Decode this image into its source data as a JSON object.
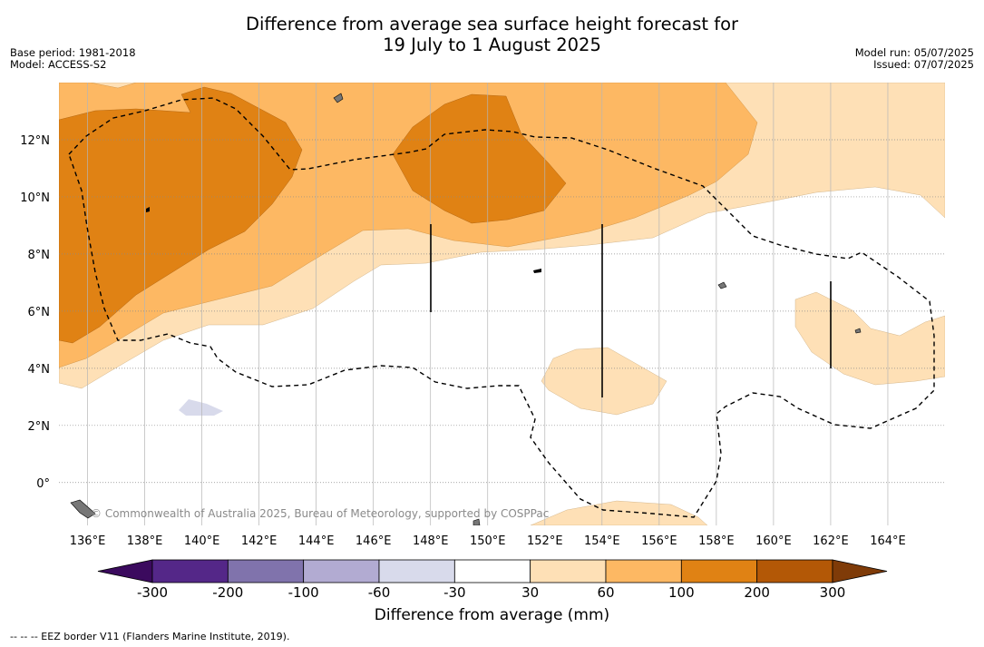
{
  "title": {
    "line1": "Difference from average sea surface height forecast for",
    "line2": "19 July to 1 August 2025"
  },
  "meta_left": {
    "base_period": "Base period: 1981-2018",
    "model": "Model: ACCESS-S2"
  },
  "meta_right": {
    "model_run": "Model run: 05/07/2025",
    "issued": "Issued: 07/07/2025"
  },
  "map": {
    "lon_range": [
      135,
      166
    ],
    "lat_range": [
      -1.5,
      14
    ],
    "lon_ticks": [
      "136°E",
      "138°E",
      "140°E",
      "142°E",
      "144°E",
      "146°E",
      "148°E",
      "150°E",
      "152°E",
      "154°E",
      "156°E",
      "158°E",
      "160°E",
      "162°E",
      "164°E"
    ],
    "lat_ticks": [
      "12°N",
      "10°N",
      "8°N",
      "6°N",
      "4°N",
      "2°N",
      "0°"
    ],
    "credit": "© Commonwealth of Australia 2025, Bureau of Meteorology, supported by COSPPac"
  },
  "colorbar": {
    "tick_labels": [
      "-300",
      "-200",
      "-100",
      "-60",
      "-30",
      "30",
      "60",
      "100",
      "200",
      "300"
    ],
    "colors": [
      "#3b0a5e",
      "#542788",
      "#8073ac",
      "#b2abd2",
      "#d8daeb",
      "#ffffff",
      "#fee0b6",
      "#fdb863",
      "#e08214",
      "#b35806",
      "#7f3b08"
    ],
    "label": "Difference from average (mm)"
  },
  "footnote": "-- -- -- EEZ border V11 (Flanders Marine Institute, 2019)."
}
